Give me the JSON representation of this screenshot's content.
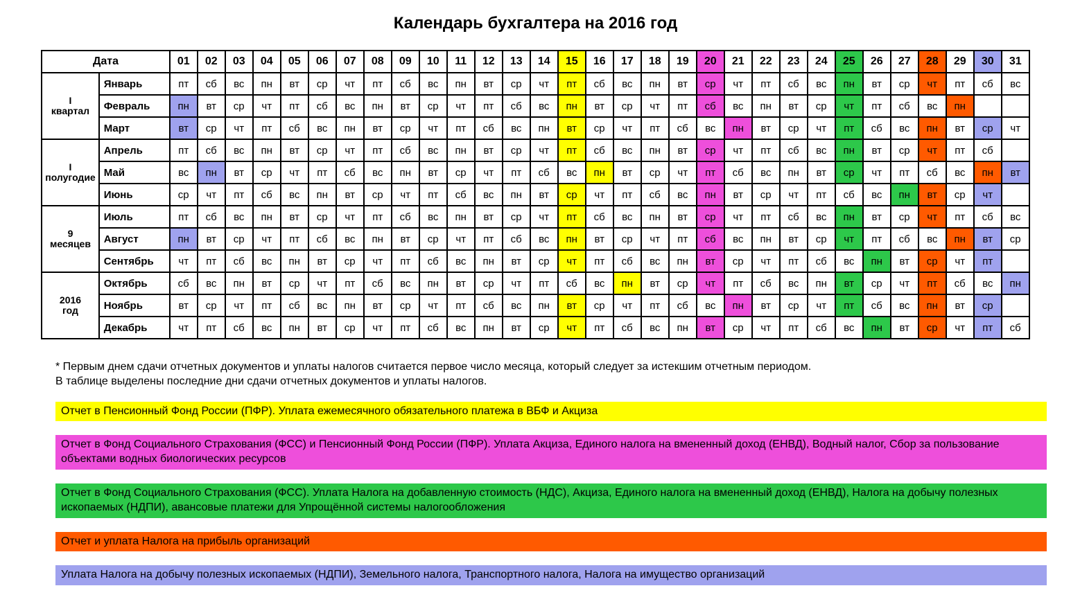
{
  "title": "Календарь бухгалтера на 2016 год",
  "date_label": "Дата",
  "colors": {
    "yellow": "#ffff00",
    "magenta": "#ee4fdb",
    "green": "#2dc84a",
    "orange": "#ff5a00",
    "lilac": "#9fa2ee",
    "white": "#ffffff"
  },
  "day_numbers": [
    "01",
    "02",
    "03",
    "04",
    "05",
    "06",
    "07",
    "08",
    "09",
    "10",
    "11",
    "12",
    "13",
    "14",
    "15",
    "16",
    "17",
    "18",
    "19",
    "20",
    "21",
    "22",
    "23",
    "24",
    "25",
    "26",
    "27",
    "28",
    "29",
    "30",
    "31"
  ],
  "header_highlight": {
    "15": "yellow",
    "20": "magenta",
    "25": "green",
    "28": "orange",
    "30": "lilac"
  },
  "periods": [
    {
      "label": "I квартал",
      "months": [
        "Январь",
        "Февраль",
        "Март"
      ]
    },
    {
      "label": "I полугодие",
      "months": [
        "Апрель",
        "Май",
        "Июнь"
      ]
    },
    {
      "label": "9 месяцев",
      "months": [
        "Июль",
        "Август",
        "Сентябрь"
      ]
    },
    {
      "label": "2016 год",
      "months": [
        "Октябрь",
        "Ноябрь",
        "Декабрь"
      ]
    }
  ],
  "months": {
    "Январь": {
      "cells": [
        "пт",
        "сб",
        "вс",
        "пн",
        "вт",
        "ср",
        "чт",
        "пт",
        "сб",
        "вс",
        "пн",
        "вт",
        "ср",
        "чт",
        "пт",
        "сб",
        "вс",
        "пн",
        "вт",
        "ср",
        "чт",
        "пт",
        "сб",
        "вс",
        "пн",
        "вт",
        "ср",
        "чт",
        "пт",
        "сб",
        "вс"
      ],
      "hl": {
        "15": "yellow",
        "20": "magenta",
        "25": "green",
        "28": "orange"
      }
    },
    "Февраль": {
      "cells": [
        "пн",
        "вт",
        "ср",
        "чт",
        "пт",
        "сб",
        "вс",
        "пн",
        "вт",
        "ср",
        "чт",
        "пт",
        "сб",
        "вс",
        "пн",
        "вт",
        "ср",
        "чт",
        "пт",
        "сб",
        "вс",
        "пн",
        "вт",
        "ср",
        "чт",
        "пт",
        "сб",
        "вс",
        "пн",
        "",
        ""
      ],
      "hl": {
        "1": "lilac",
        "15": "yellow",
        "20": "magenta",
        "25": "green",
        "29": "orange"
      }
    },
    "Март": {
      "cells": [
        "вт",
        "ср",
        "чт",
        "пт",
        "сб",
        "вс",
        "пн",
        "вт",
        "ср",
        "чт",
        "пт",
        "сб",
        "вс",
        "пн",
        "вт",
        "ср",
        "чт",
        "пт",
        "сб",
        "вс",
        "пн",
        "вт",
        "ср",
        "чт",
        "пт",
        "сб",
        "вс",
        "пн",
        "вт",
        "ср",
        "чт"
      ],
      "hl": {
        "1": "lilac",
        "15": "yellow",
        "21": "magenta",
        "25": "green",
        "28": "orange",
        "30": "lilac"
      }
    },
    "Апрель": {
      "cells": [
        "пт",
        "сб",
        "вс",
        "пн",
        "вт",
        "ср",
        "чт",
        "пт",
        "сб",
        "вс",
        "пн",
        "вт",
        "ср",
        "чт",
        "пт",
        "сб",
        "вс",
        "пн",
        "вт",
        "ср",
        "чт",
        "пт",
        "сб",
        "вс",
        "пн",
        "вт",
        "ср",
        "чт",
        "пт",
        "сб",
        ""
      ],
      "hl": {
        "15": "yellow",
        "20": "magenta",
        "25": "green",
        "28": "orange"
      }
    },
    "Май": {
      "cells": [
        "вс",
        "пн",
        "вт",
        "ср",
        "чт",
        "пт",
        "сб",
        "вс",
        "пн",
        "вт",
        "ср",
        "чт",
        "пт",
        "сб",
        "вс",
        "пн",
        "вт",
        "ср",
        "чт",
        "пт",
        "сб",
        "вс",
        "пн",
        "вт",
        "ср",
        "чт",
        "пт",
        "сб",
        "вс",
        "пн",
        "вт"
      ],
      "hl": {
        "2": "lilac",
        "16": "yellow",
        "20": "magenta",
        "25": "green",
        "30": "orange",
        "31": "lilac"
      }
    },
    "Июнь": {
      "cells": [
        "ср",
        "чт",
        "пт",
        "сб",
        "вс",
        "пн",
        "вт",
        "ср",
        "чт",
        "пт",
        "сб",
        "вс",
        "пн",
        "вт",
        "ср",
        "чт",
        "пт",
        "сб",
        "вс",
        "пн",
        "вт",
        "ср",
        "чт",
        "пт",
        "сб",
        "вс",
        "пн",
        "вт",
        "ср",
        "чт",
        ""
      ],
      "hl": {
        "15": "yellow",
        "20": "magenta",
        "27": "green",
        "28": "orange",
        "30": "lilac"
      }
    },
    "Июль": {
      "cells": [
        "пт",
        "сб",
        "вс",
        "пн",
        "вт",
        "ср",
        "чт",
        "пт",
        "сб",
        "вс",
        "пн",
        "вт",
        "ср",
        "чт",
        "пт",
        "сб",
        "вс",
        "пн",
        "вт",
        "ср",
        "чт",
        "пт",
        "сб",
        "вс",
        "пн",
        "вт",
        "ср",
        "чт",
        "пт",
        "сб",
        "вс"
      ],
      "hl": {
        "15": "yellow",
        "20": "magenta",
        "25": "green",
        "28": "orange"
      }
    },
    "Август": {
      "cells": [
        "пн",
        "вт",
        "ср",
        "чт",
        "пт",
        "сб",
        "вс",
        "пн",
        "вт",
        "ср",
        "чт",
        "пт",
        "сб",
        "вс",
        "пн",
        "вт",
        "ср",
        "чт",
        "пт",
        "сб",
        "вс",
        "пн",
        "вт",
        "ср",
        "чт",
        "пт",
        "сб",
        "вс",
        "пн",
        "вт",
        "ср"
      ],
      "hl": {
        "1": "lilac",
        "15": "yellow",
        "20": "magenta",
        "25": "green",
        "29": "orange",
        "30": "lilac"
      }
    },
    "Сентябрь": {
      "cells": [
        "чт",
        "пт",
        "сб",
        "вс",
        "пн",
        "вт",
        "ср",
        "чт",
        "пт",
        "сб",
        "вс",
        "пн",
        "вт",
        "ср",
        "чт",
        "пт",
        "сб",
        "вс",
        "пн",
        "вт",
        "ср",
        "чт",
        "пт",
        "сб",
        "вс",
        "пн",
        "вт",
        "ср",
        "чт",
        "пт",
        ""
      ],
      "hl": {
        "15": "yellow",
        "20": "magenta",
        "26": "green",
        "28": "orange",
        "30": "lilac"
      }
    },
    "Октябрь": {
      "cells": [
        "сб",
        "вс",
        "пн",
        "вт",
        "ср",
        "чт",
        "пт",
        "сб",
        "вс",
        "пн",
        "вт",
        "ср",
        "чт",
        "пт",
        "сб",
        "вс",
        "пн",
        "вт",
        "ср",
        "чт",
        "пт",
        "сб",
        "вс",
        "пн",
        "вт",
        "ср",
        "чт",
        "пт",
        "сб",
        "вс",
        "пн"
      ],
      "hl": {
        "17": "yellow",
        "20": "magenta",
        "25": "green",
        "28": "orange",
        "31": "lilac"
      }
    },
    "Ноябрь": {
      "cells": [
        "вт",
        "ср",
        "чт",
        "пт",
        "сб",
        "вс",
        "пн",
        "вт",
        "ср",
        "чт",
        "пт",
        "сб",
        "вс",
        "пн",
        "вт",
        "ср",
        "чт",
        "пт",
        "сб",
        "вс",
        "пн",
        "вт",
        "ср",
        "чт",
        "пт",
        "сб",
        "вс",
        "пн",
        "вт",
        "ср",
        ""
      ],
      "hl": {
        "15": "yellow",
        "21": "magenta",
        "25": "green",
        "28": "orange",
        "30": "lilac"
      }
    },
    "Декабрь": {
      "cells": [
        "чт",
        "пт",
        "сб",
        "вс",
        "пн",
        "вт",
        "ср",
        "чт",
        "пт",
        "сб",
        "вс",
        "пн",
        "вт",
        "ср",
        "чт",
        "пт",
        "сб",
        "вс",
        "пн",
        "вт",
        "ср",
        "чт",
        "пт",
        "сб",
        "вс",
        "пн",
        "вт",
        "ср",
        "чт",
        "пт",
        "сб"
      ],
      "hl": {
        "15": "yellow",
        "20": "magenta",
        "26": "green",
        "28": "orange",
        "30": "lilac"
      }
    }
  },
  "footnote": "* Первым днем сдачи отчетных документов и уплаты налогов считается первое число месяца, который следует за истекшим отчетным периодом.\nВ таблице выделены последние дни сдачи отчетных документов и уплаты налогов.",
  "legend": [
    {
      "color": "yellow",
      "text": "Отчет в Пенсионный Фонд России (ПФР). Уплата ежемесячного обязательного платежа в ВБФ и Акциза"
    },
    {
      "color": "magenta",
      "text": "Отчет в Фонд Социального Страхования (ФСС) и Пенсионный Фонд России (ПФР). Уплата  Акциза, Единого налога на вмененный доход (ЕНВД), Водный налог,  Сбор за пользование объектами водных биологических ресурсов"
    },
    {
      "color": "green",
      "text": "Отчет в Фонд Социального Страхования (ФСС). Уплата Налога на добавленную стоимость (НДС), Акциза, Единого налога на вмененный доход (ЕНВД), Налога на добычу полезных ископаемых (НДПИ),  авансовые платежи для Упрощённой системы налогообложения"
    },
    {
      "color": "orange",
      "text": "Отчет и уплата Налога на прибыль организаций"
    },
    {
      "color": "lilac",
      "text": "Уплата Налога на добычу полезных ископаемых (НДПИ), Земельного налога, Транспортного налога, Налога на имущество организаций"
    }
  ]
}
